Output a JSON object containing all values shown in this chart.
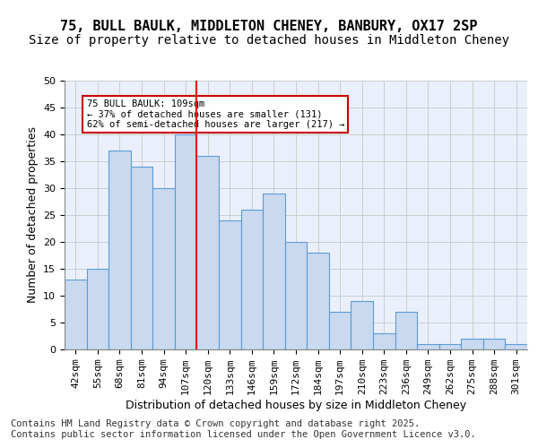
{
  "title1": "75, BULL BAULK, MIDDLETON CHENEY, BANBURY, OX17 2SP",
  "title2": "Size of property relative to detached houses in Middleton Cheney",
  "xlabel": "Distribution of detached houses by size in Middleton Cheney",
  "ylabel": "Number of detached properties",
  "categories": [
    "42sqm",
    "55sqm",
    "68sqm",
    "81sqm",
    "94sqm",
    "107sqm",
    "120sqm",
    "133sqm",
    "146sqm",
    "159sqm",
    "172sqm",
    "184sqm",
    "197sqm",
    "210sqm",
    "223sqm",
    "236sqm",
    "249sqm",
    "262sqm",
    "275sqm",
    "288sqm",
    "301sqm"
  ],
  "values": [
    13,
    15,
    37,
    34,
    30,
    40,
    36,
    24,
    26,
    29,
    20,
    18,
    7,
    9,
    3,
    7,
    1,
    1,
    2,
    2,
    1
  ],
  "bar_color": "#c9d9f0",
  "bar_edge_color": "#5b9bd5",
  "reference_line_x": 5,
  "reference_line_value": 109,
  "annotation_text": "75 BULL BAULK: 109sqm\n← 37% of detached houses are smaller (131)\n62% of semi-detached houses are larger (217) →",
  "annotation_box_color": "#ffffff",
  "annotation_box_edge_color": "#cc0000",
  "ylim": [
    0,
    50
  ],
  "yticks": [
    0,
    5,
    10,
    15,
    20,
    25,
    30,
    35,
    40,
    45,
    50
  ],
  "grid_color": "#cccccc",
  "background_color": "#eaf0fb",
  "footer": "Contains HM Land Registry data © Crown copyright and database right 2025.\nContains public sector information licensed under the Open Government Licence v3.0.",
  "title_fontsize": 11,
  "subtitle_fontsize": 10,
  "axis_label_fontsize": 9,
  "tick_fontsize": 8,
  "footer_fontsize": 7.5
}
